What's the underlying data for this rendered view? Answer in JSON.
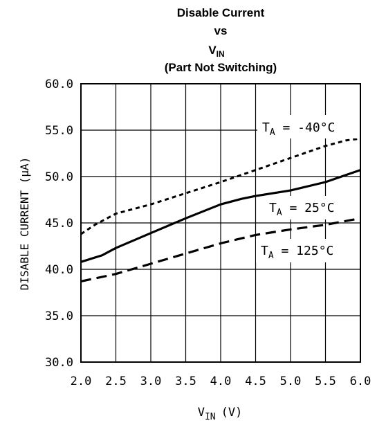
{
  "chart_data": {
    "type": "line",
    "title_line1": "Disable Current",
    "title_line2": "vs",
    "title_line3_main": "V",
    "title_line3_sub": "IN",
    "title_line4": "(Part Not Switching)",
    "xlabel_main": "V",
    "xlabel_sub": "IN",
    "xlabel_unit": "(V)",
    "ylabel": "DISABLE CURRENT (μA)",
    "xlim": [
      2.0,
      6.0
    ],
    "ylim": [
      30.0,
      60.0
    ],
    "x_ticks": [
      "2.0",
      "2.5",
      "3.0",
      "3.5",
      "4.0",
      "4.5",
      "5.0",
      "5.5",
      "6.0"
    ],
    "y_ticks": [
      "30.0",
      "35.0",
      "40.0",
      "45.0",
      "50.0",
      "55.0",
      "60.0"
    ],
    "grid": true,
    "series": [
      {
        "name": "T_A = -40°C",
        "label_main": "T",
        "label_sub": "A",
        "label_rest": " = -40°C",
        "style": "dotted",
        "x": [
          2.0,
          2.2,
          2.5,
          3.0,
          3.5,
          4.0,
          4.5,
          5.0,
          5.5,
          5.8,
          6.0
        ],
        "y": [
          43.8,
          44.8,
          46.0,
          47.0,
          48.2,
          49.4,
          50.7,
          52.0,
          53.3,
          53.9,
          54.1
        ]
      },
      {
        "name": "T_A = 25°C",
        "label_main": "T",
        "label_sub": "A",
        "label_rest": " = 25°C",
        "style": "solid",
        "x": [
          2.0,
          2.3,
          2.5,
          3.0,
          3.5,
          4.0,
          4.3,
          4.5,
          5.0,
          5.5,
          6.0
        ],
        "y": [
          40.8,
          41.5,
          42.3,
          43.9,
          45.5,
          47.0,
          47.6,
          47.9,
          48.5,
          49.4,
          50.7
        ]
      },
      {
        "name": "T_A = 125°C",
        "label_main": "T",
        "label_sub": "A",
        "label_rest": " = 125°C",
        "style": "dashed",
        "x": [
          2.0,
          2.5,
          3.0,
          3.5,
          4.0,
          4.5,
          5.0,
          5.5,
          6.0
        ],
        "y": [
          38.7,
          39.5,
          40.6,
          41.7,
          42.8,
          43.7,
          44.3,
          44.8,
          45.5
        ]
      }
    ]
  }
}
